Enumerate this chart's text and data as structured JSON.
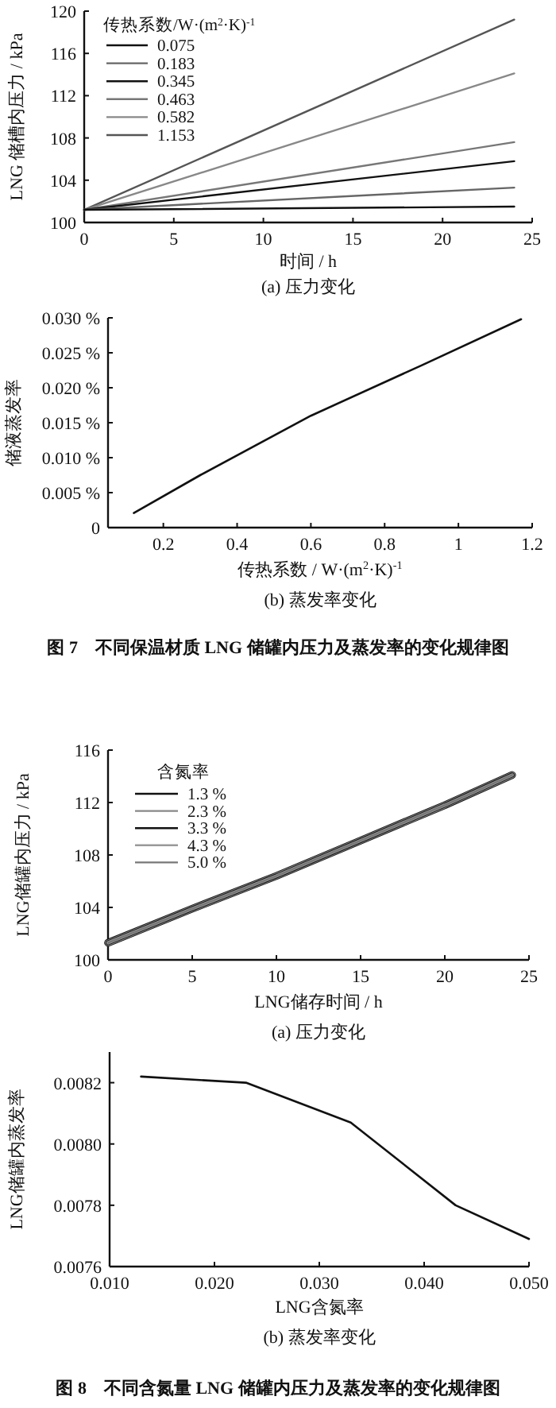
{
  "chart_data": [
    {
      "type": "line",
      "xlabel": "时间 / h",
      "ylabel": "LNG 储槽内压力 / kPa",
      "legend_title": "传热系数/W·(m$^{2}$·K)$^{-1}$",
      "legend": "top left",
      "annotations": [
        "(a) 压力变化"
      ],
      "x": [
        0,
        24
      ],
      "xlim": [
        0,
        25
      ],
      "xticks": [
        0,
        5,
        10,
        15,
        20,
        25
      ],
      "ylim": [
        100,
        120
      ],
      "yticks": [
        100,
        104,
        108,
        112,
        116,
        120
      ],
      "series": [
        {
          "name": "0.075",
          "color": "#111111",
          "values": [
            101.2,
            101.5
          ]
        },
        {
          "name": "0.183",
          "color": "#666666",
          "values": [
            101.2,
            103.3
          ]
        },
        {
          "name": "0.345",
          "color": "#111111",
          "values": [
            101.2,
            105.8
          ]
        },
        {
          "name": "0.463",
          "color": "#777777",
          "values": [
            101.2,
            107.6
          ]
        },
        {
          "name": "0.582",
          "color": "#888888",
          "values": [
            101.2,
            114.1
          ]
        },
        {
          "name": "1.153",
          "color": "#555555",
          "values": [
            101.2,
            119.2
          ]
        }
      ]
    },
    {
      "type": "line",
      "xlabel": "传热系数 / W·(m$^{2}$·K)$^{-1}$",
      "ylabel": "储液蒸发率",
      "annotations": [
        "(b) 蒸发率变化",
        "图 7　不同保温材质 LNG 储罐内压力及蒸发率的变化规律图"
      ],
      "x": [
        0.12,
        0.3,
        0.6,
        0.9,
        1.17
      ],
      "xlim": [
        0.05,
        1.2
      ],
      "xticks": [
        0.2,
        0.4,
        0.6,
        0.8,
        1.0,
        1.2
      ],
      "ylim": [
        0,
        0.03
      ],
      "yticks": [
        {
          "value": 0,
          "label": "0"
        },
        {
          "value": 0.005,
          "label": "0.005 %"
        },
        {
          "value": 0.01,
          "label": "0.010 %"
        },
        {
          "value": 0.015,
          "label": "0.015 %"
        },
        {
          "value": 0.02,
          "label": "0.020 %"
        },
        {
          "value": 0.025,
          "label": "0.025 %"
        },
        {
          "value": 0.03,
          "label": "0.030 %"
        }
      ],
      "series": [
        {
          "color": "#111111",
          "values": [
            0.0021,
            0.0075,
            0.016,
            0.0232,
            0.0298
          ]
        }
      ]
    },
    {
      "type": "line",
      "xlabel": "LNG储存时间 / h",
      "ylabel": "LNG储罐内压力 / kPa",
      "legend_title": "含氮率",
      "legend": "top left",
      "annotations": [
        "(a) 压力变化"
      ],
      "x": [
        0,
        5,
        10,
        15,
        20,
        24
      ],
      "xlim": [
        0,
        25
      ],
      "xticks": [
        0,
        5,
        10,
        15,
        20,
        25
      ],
      "ylim": [
        100,
        116
      ],
      "yticks": [
        100,
        104,
        108,
        112,
        116
      ],
      "series": [
        {
          "name": "1.3 %",
          "color": "#111111",
          "values": [
            101.3,
            103.9,
            106.4,
            109.1,
            111.8,
            114.1
          ]
        },
        {
          "name": "2.3 %",
          "color": "#888888",
          "values": [
            101.3,
            103.9,
            106.4,
            109.1,
            111.8,
            114.1
          ]
        },
        {
          "name": "3.3 %",
          "color": "#111111",
          "values": [
            101.3,
            103.9,
            106.4,
            109.1,
            111.8,
            114.1
          ]
        },
        {
          "name": "4.3 %",
          "color": "#999999",
          "values": [
            101.3,
            103.9,
            106.4,
            109.1,
            111.8,
            114.1
          ]
        },
        {
          "name": "5.0 %",
          "color": "#777777",
          "values": [
            101.3,
            103.9,
            106.4,
            109.1,
            111.8,
            114.1
          ]
        }
      ]
    },
    {
      "type": "line",
      "xlabel": "LNG含氮率",
      "ylabel": "LNG储罐内蒸发率",
      "annotations": [
        "(b) 蒸发率变化",
        "图 8　不同含氮量 LNG 储罐内压力及蒸发率的变化规律图"
      ],
      "x": [
        0.013,
        0.023,
        0.033,
        0.043,
        0.05
      ],
      "xlim": [
        0.01,
        0.05
      ],
      "xticks": [
        {
          "value": 0.01,
          "label": "0.010"
        },
        {
          "value": 0.02,
          "label": "0.020"
        },
        {
          "value": 0.03,
          "label": "0.030"
        },
        {
          "value": 0.04,
          "label": "0.040"
        },
        {
          "value": 0.05,
          "label": "0.050"
        }
      ],
      "ylim": [
        0.0076,
        0.0083
      ],
      "yticks": [
        {
          "value": 0.0076,
          "label": "0.0076"
        },
        {
          "value": 0.0078,
          "label": "0.0078"
        },
        {
          "value": 0.008,
          "label": "0.0080"
        },
        {
          "value": 0.0082,
          "label": "0.0082"
        }
      ],
      "series": [
        {
          "color": "#111111",
          "values": [
            0.00822,
            0.0082,
            0.00807,
            0.0078,
            0.00769
          ]
        }
      ]
    }
  ]
}
